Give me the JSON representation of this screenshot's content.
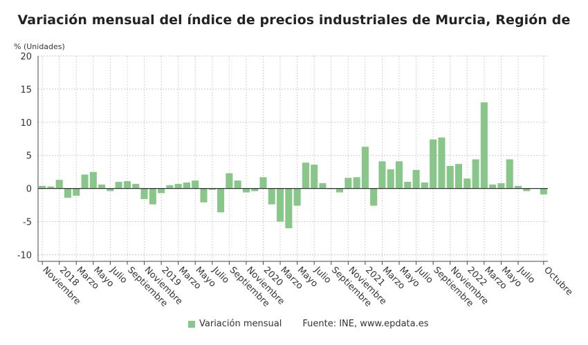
{
  "chart_data": {
    "type": "bar",
    "title": "Variación mensual del índice de precios industriales de Murcia, Región de",
    "ylabel": "% (Unidades)",
    "ylim": [
      -11,
      20
    ],
    "yticks": [
      20,
      15,
      10,
      5,
      0,
      -5,
      -10
    ],
    "grid": true,
    "bar_color": "#88c68a",
    "x_labels": [
      "Noviembre",
      "2018",
      "Marzo",
      "Mayo",
      "Julio",
      "Septiembre",
      "Noviembre",
      "2019",
      "Marzo",
      "Mayo",
      "Julio",
      "Septiembre",
      "Noviembre",
      "2020",
      "Marzo",
      "Mayo",
      "Julio",
      "Septiembre",
      "Noviembre",
      "2021",
      "Marzo",
      "Mayo",
      "Julio",
      "Septiembre",
      "Noviembre",
      "2022",
      "Marzo",
      "Mayo",
      "Julio",
      "Octubre"
    ],
    "x_label_index": [
      0,
      2,
      4,
      6,
      8,
      10,
      12,
      14,
      16,
      18,
      20,
      22,
      24,
      26,
      28,
      30,
      32,
      34,
      36,
      38,
      40,
      42,
      44,
      46,
      48,
      50,
      52,
      54,
      56,
      59
    ],
    "series": [
      {
        "name": "Variación mensual",
        "values": [
          0.4,
          0.3,
          1.3,
          -1.4,
          -1.1,
          2.1,
          2.5,
          0.6,
          -0.4,
          1.0,
          1.1,
          0.7,
          -1.6,
          -2.4,
          -0.7,
          0.5,
          0.7,
          0.9,
          1.2,
          -2.1,
          -0.2,
          -3.6,
          2.3,
          1.2,
          -0.6,
          -0.4,
          1.7,
          -2.4,
          -5.0,
          -6.0,
          -2.6,
          3.9,
          3.6,
          0.8,
          -0.1,
          -0.6,
          1.6,
          1.7,
          6.3,
          -2.6,
          4.1,
          2.9,
          4.1,
          1.0,
          2.8,
          0.9,
          7.4,
          7.7,
          3.4,
          3.7,
          1.5,
          4.4,
          13.0,
          0.6,
          0.8,
          4.4,
          0.4,
          -0.4,
          0.0,
          -0.9
        ]
      }
    ]
  },
  "legend": {
    "series_label": "Variación mensual",
    "source": "Fuente: INE, www.epdata.es"
  }
}
